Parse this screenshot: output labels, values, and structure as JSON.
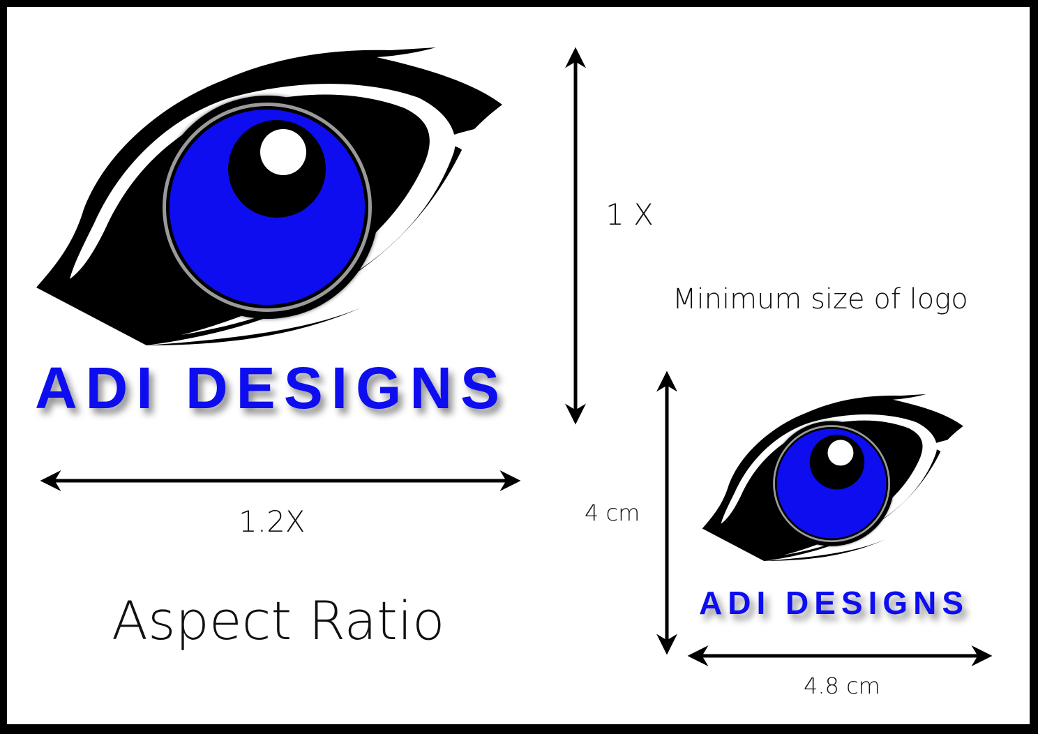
{
  "logo": {
    "brand_name": "ADI DESIGNS",
    "icon": "eye-icon"
  },
  "labels": {
    "height_ratio": "1 X",
    "width_ratio": "1.2X",
    "aspect_ratio_title": "Aspect Ratio",
    "minimum_size_title": "Minimum size of logo",
    "min_height": "4 cm",
    "min_width": "4.8 cm"
  },
  "colors": {
    "iris": "#0d0df0",
    "outline": "#000000",
    "text_brand": "#0d0df0",
    "background": "#ffffff",
    "frame": "#000000"
  }
}
